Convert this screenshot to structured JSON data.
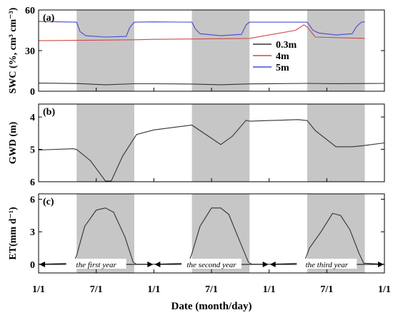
{
  "chart_data": {
    "type": "line",
    "xlabel": "Date (month/day)",
    "x_tick_labels": [
      "1/1",
      "7/1",
      "1/1",
      "7/1",
      "1/1",
      "7/1",
      "1/1"
    ],
    "x_range_years": [
      0,
      3
    ],
    "shaded_periods_years": [
      [
        0.33,
        0.83
      ],
      [
        1.33,
        1.83
      ],
      [
        2.33,
        2.83
      ]
    ],
    "grid": false,
    "year_labels": [
      "the first year",
      "the second year",
      "the third year"
    ],
    "panels": [
      {
        "id": "a",
        "panel_label": "(a)",
        "ylabel": "SWC (%, cm³ cm⁻³)",
        "ylim": [
          0,
          60
        ],
        "y_ticks": [
          0,
          30,
          60
        ],
        "y_tick_labels": [
          "0",
          "30",
          "60"
        ],
        "legend_position": "center-right",
        "series": [
          {
            "name": "0.3m",
            "color": "#333333",
            "points": [
              [
                0.0,
                6.0
              ],
              [
                0.33,
                5.7
              ],
              [
                0.58,
                4.8
              ],
              [
                0.83,
                5.5
              ],
              [
                1.0,
                5.5
              ],
              [
                1.33,
                5.3
              ],
              [
                1.58,
                4.8
              ],
              [
                1.83,
                5.4
              ],
              [
                2.33,
                5.8
              ],
              [
                2.58,
                5.6
              ],
              [
                2.83,
                5.7
              ],
              [
                3.0,
                5.8
              ]
            ]
          },
          {
            "name": "4m",
            "color": "#d04848",
            "points": [
              [
                0.0,
                37.3
              ],
              [
                0.33,
                37.6
              ],
              [
                0.83,
                38.0
              ],
              [
                1.0,
                38.3
              ],
              [
                1.33,
                38.6
              ],
              [
                1.83,
                39.0
              ],
              [
                2.23,
                45.0
              ],
              [
                2.3,
                49.0
              ],
              [
                2.33,
                47.5
              ],
              [
                2.4,
                40.0
              ],
              [
                2.83,
                39.0
              ]
            ]
          },
          {
            "name": "5m",
            "color": "#4848d8",
            "points": [
              [
                0.0,
                51.5
              ],
              [
                0.33,
                51.0
              ],
              [
                0.36,
                44.0
              ],
              [
                0.41,
                41.0
              ],
              [
                0.58,
                40.0
              ],
              [
                0.76,
                40.5
              ],
              [
                0.79,
                47.0
              ],
              [
                0.83,
                51.0
              ],
              [
                1.0,
                51.2
              ],
              [
                1.33,
                51.0
              ],
              [
                1.36,
                46.0
              ],
              [
                1.4,
                42.5
              ],
              [
                1.58,
                41.0
              ],
              [
                1.76,
                42.0
              ],
              [
                1.8,
                49.0
              ],
              [
                1.83,
                51.0
              ],
              [
                2.19,
                51.0
              ],
              [
                2.33,
                51.0
              ],
              [
                2.38,
                45.0
              ],
              [
                2.43,
                43.0
              ],
              [
                2.58,
                41.5
              ],
              [
                2.72,
                42.5
              ],
              [
                2.76,
                48.0
              ],
              [
                2.8,
                51.0
              ],
              [
                2.83,
                51.2
              ]
            ]
          }
        ]
      },
      {
        "id": "b",
        "panel_label": "(b)",
        "ylabel": "GWD (m)",
        "ylim": [
          6,
          3.6
        ],
        "y_ticks": [
          4,
          5,
          6
        ],
        "y_tick_labels": [
          "4",
          "5",
          "6"
        ],
        "y_reversed": true,
        "series": [
          {
            "name": "GWD",
            "color": "#333333",
            "points": [
              [
                0.0,
                5.02
              ],
              [
                0.3,
                4.98
              ],
              [
                0.33,
                5.0
              ],
              [
                0.45,
                5.35
              ],
              [
                0.58,
                5.98
              ],
              [
                0.63,
                5.98
              ],
              [
                0.73,
                5.2
              ],
              [
                0.85,
                4.54
              ],
              [
                1.0,
                4.4
              ],
              [
                1.33,
                4.25
              ],
              [
                1.58,
                4.85
              ],
              [
                1.68,
                4.6
              ],
              [
                1.8,
                4.1
              ],
              [
                1.83,
                4.13
              ],
              [
                2.25,
                4.08
              ],
              [
                2.33,
                4.11
              ],
              [
                2.4,
                4.42
              ],
              [
                2.58,
                4.92
              ],
              [
                2.72,
                4.92
              ],
              [
                2.83,
                4.88
              ],
              [
                3.0,
                4.8
              ]
            ]
          }
        ]
      },
      {
        "id": "c",
        "panel_label": "(c)",
        "ylabel": "ET(mm d⁻¹)",
        "ylim": [
          -0.8,
          6.5
        ],
        "y_ticks": [
          0,
          3,
          6
        ],
        "y_tick_labels": [
          "0",
          "3",
          "6"
        ],
        "series": [
          {
            "name": "ET",
            "color": "#333333",
            "points": [
              [
                0.0,
                0.0
              ],
              [
                0.3,
                0.1
              ],
              [
                0.33,
                0.8
              ],
              [
                0.4,
                3.5
              ],
              [
                0.5,
                5.0
              ],
              [
                0.58,
                5.2
              ],
              [
                0.65,
                4.8
              ],
              [
                0.75,
                2.5
              ],
              [
                0.82,
                0.2
              ],
              [
                0.85,
                0.0
              ],
              [
                1.0,
                0.0
              ],
              [
                1.3,
                0.1
              ],
              [
                1.33,
                1.0
              ],
              [
                1.4,
                3.5
              ],
              [
                1.5,
                5.2
              ],
              [
                1.58,
                5.2
              ],
              [
                1.65,
                4.6
              ],
              [
                1.75,
                2.0
              ],
              [
                1.82,
                0.2
              ],
              [
                1.85,
                0.0
              ],
              [
                2.0,
                0.0
              ],
              [
                2.3,
                0.1
              ],
              [
                2.35,
                1.5
              ],
              [
                2.45,
                3.0
              ],
              [
                2.55,
                4.7
              ],
              [
                2.62,
                4.5
              ],
              [
                2.7,
                3.2
              ],
              [
                2.78,
                1.0
              ],
              [
                2.82,
                0.1
              ],
              [
                3.0,
                0.0
              ]
            ]
          }
        ]
      }
    ]
  }
}
